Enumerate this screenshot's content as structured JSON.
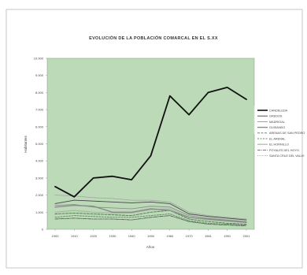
{
  "chart_data": {
    "type": "line",
    "title": "EVOLUCIÓN DE LA POBLACIÓN COMARCAL EN EL S.XX",
    "xlabel": "Años",
    "ylabel": "Habitantes",
    "x": [
      "1900",
      "1910",
      "1920",
      "1930",
      "1940",
      "1950",
      "1960",
      "1970",
      "1981",
      "1991",
      "2001"
    ],
    "y_ticks": [
      "0",
      "1.000",
      "2.000",
      "3.000",
      "4.000",
      "5.000",
      "6.000",
      "7.000",
      "8.000",
      "9.000",
      "10.000"
    ],
    "ylim": [
      0,
      10000
    ],
    "grid": false,
    "legend_position": "right",
    "plot_background": "#bcd9b8",
    "series": [
      {
        "name": "CANDELEDA",
        "color": "#111111",
        "width": 1.8,
        "dash": "",
        "values": [
          2500,
          1900,
          3000,
          3100,
          2900,
          4300,
          7800,
          6700,
          8000,
          8300,
          7600
        ]
      },
      {
        "name": "GREDOS",
        "color": "#444444",
        "width": 0.9,
        "dash": "",
        "values": [
          1500,
          1700,
          1650,
          1600,
          1550,
          1600,
          1500,
          900,
          750,
          650,
          550
        ]
      },
      {
        "name": "MADRIGAL",
        "color": "#888888",
        "width": 0.8,
        "dash": "",
        "values": [
          1400,
          1450,
          1300,
          1250,
          1200,
          1350,
          1300,
          800,
          650,
          550,
          450
        ]
      },
      {
        "name": "GUISANDO",
        "color": "#8c8c8c",
        "width": 1.4,
        "dash": "",
        "values": [
          1300,
          1400,
          1350,
          1000,
          1000,
          1200,
          1100,
          700,
          600,
          500,
          400
        ]
      },
      {
        "name": "ARENAS DE SAN PEDRO",
        "color": "#4a7a4a",
        "width": 0.9,
        "dash": "3 1.5",
        "values": [
          900,
          950,
          900,
          850,
          800,
          1000,
          1100,
          600,
          450,
          350,
          300
        ]
      },
      {
        "name": "EL ARENAL",
        "color": "#5c8c5c",
        "width": 0.9,
        "dash": "2 1.5",
        "values": [
          700,
          800,
          750,
          700,
          700,
          800,
          900,
          500,
          350,
          300,
          250
        ]
      },
      {
        "name": "EL HORNILLO",
        "color": "#a8b8a4",
        "width": 1.2,
        "dash": "",
        "values": [
          1000,
          1100,
          1000,
          950,
          950,
          1150,
          1200,
          700,
          550,
          450,
          400
        ]
      },
      {
        "name": "POYALES DEL HOYO",
        "color": "#555555",
        "width": 0.8,
        "dash": "4 1 1 1",
        "values": [
          600,
          650,
          600,
          600,
          550,
          700,
          800,
          450,
          300,
          250,
          200
        ]
      },
      {
        "name": "SANTA CRUZ DEL VALLE",
        "color": "#9a9a9a",
        "width": 0.8,
        "dash": "1 1",
        "values": [
          2000,
          1950,
          1850,
          1800,
          1700,
          1700,
          1600,
          1000,
          800,
          700,
          600
        ]
      }
    ]
  }
}
